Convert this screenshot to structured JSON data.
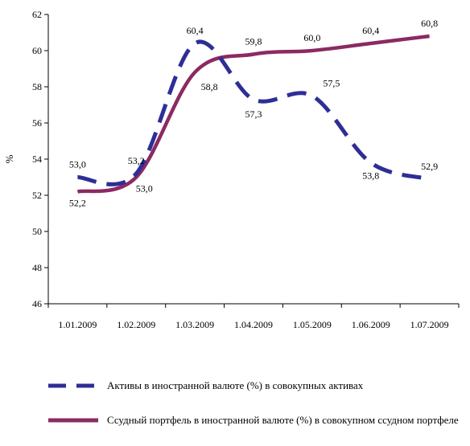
{
  "chart_data": {
    "type": "line",
    "ylabel": "%",
    "ylim": [
      46,
      62
    ],
    "yticks": [
      46,
      48,
      50,
      52,
      54,
      56,
      58,
      60,
      62
    ],
    "categories": [
      "1.01.2009",
      "1.02.2009",
      "1.03.2009",
      "1.04.2009",
      "1.05.2009",
      "1.06.2009",
      "1.07.2009"
    ],
    "series": [
      {
        "name": "Активы в иностранной валюте (%)  в совокупных активах",
        "style": "dashed",
        "color": "#2e2e96",
        "values": [
          53.0,
          53.2,
          60.4,
          57.3,
          57.5,
          53.8,
          52.9
        ],
        "labels": [
          "53,0",
          "53,2",
          "60,4",
          "57,3",
          "57,5",
          "53,8",
          "52,9"
        ]
      },
      {
        "name": "Ссудный портфель в иностранной валюте (%) в совокупном ссудном портфеле",
        "style": "solid",
        "color": "#8b2a62",
        "values": [
          52.2,
          53.0,
          58.8,
          59.8,
          60.0,
          60.4,
          60.8
        ],
        "labels": [
          "52,2",
          "53,0",
          "58,8",
          "59,8",
          "60,0",
          "60,4",
          "60,8"
        ]
      }
    ]
  }
}
